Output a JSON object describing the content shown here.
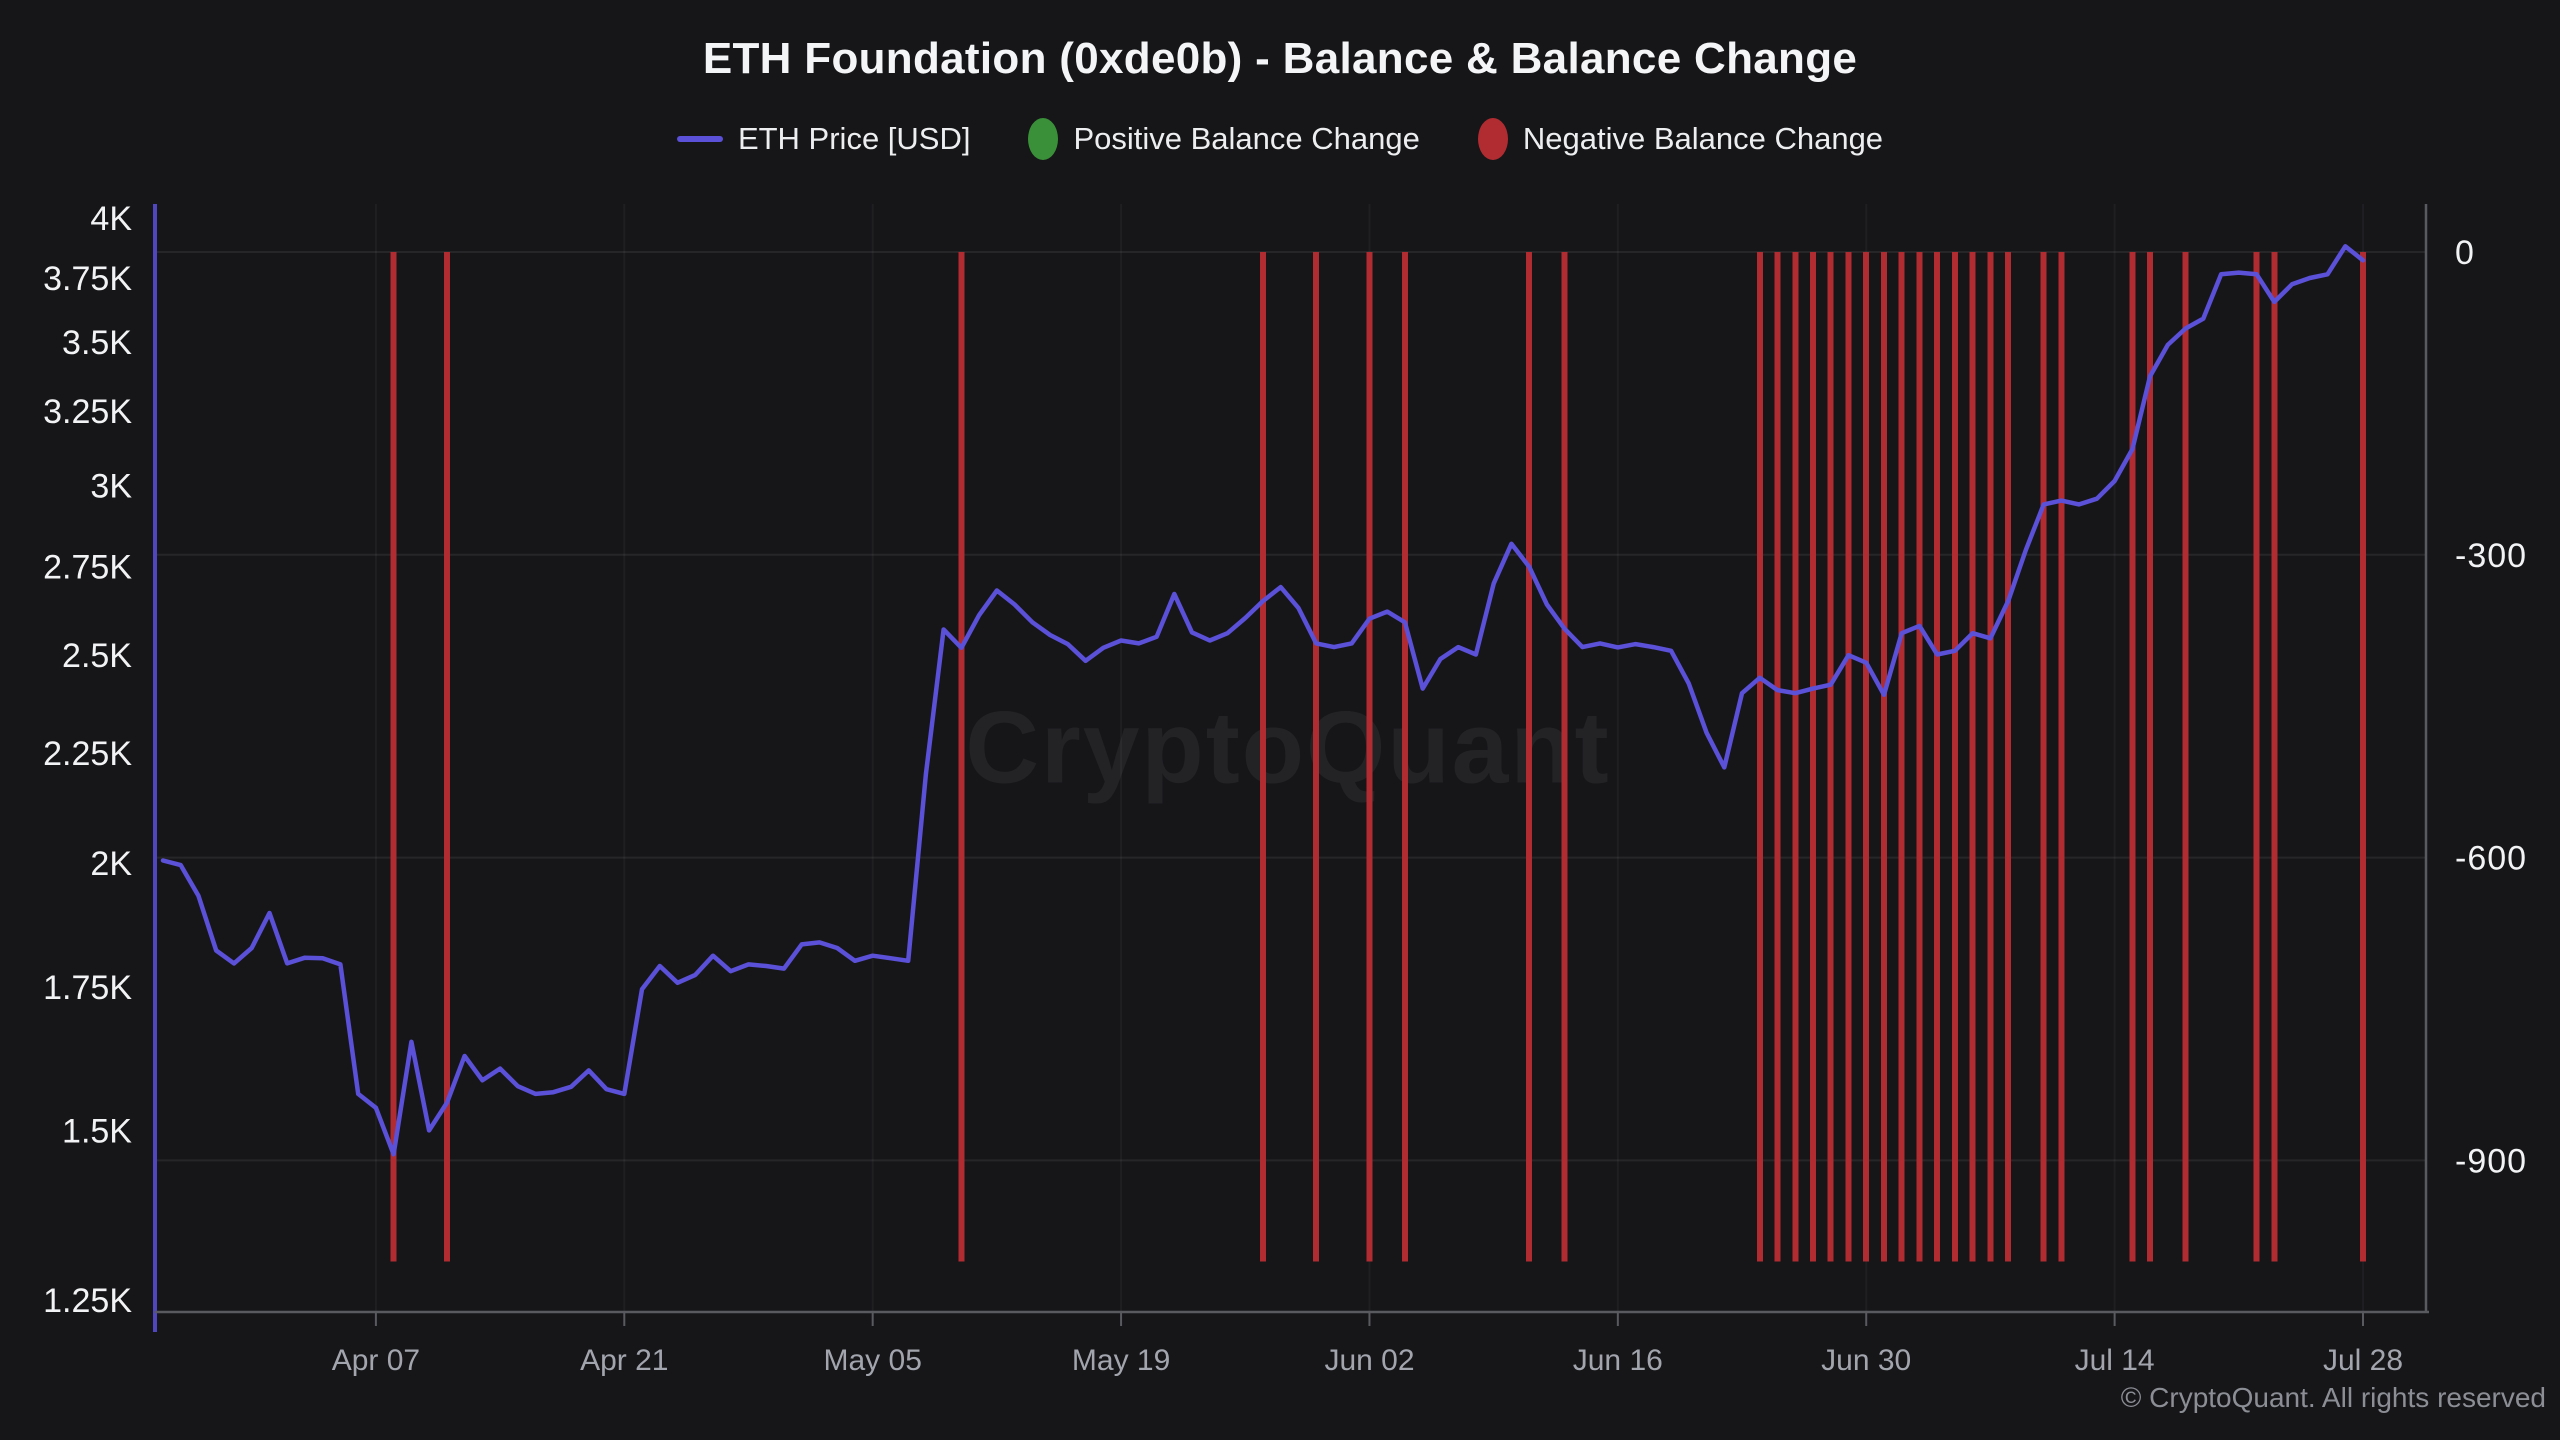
{
  "title": "ETH Foundation (0xde0b) - Balance & Balance Change",
  "watermark": "CryptoQuant",
  "copyright": "© CryptoQuant. All rights reserved",
  "colors": {
    "background": "#161619",
    "title_text": "#f4f5f7",
    "legend_text": "#eceef0",
    "axis_label_text": "#f2f3f5",
    "x_label_text": "#a2a5ad",
    "axis_line": "#595a60",
    "grid_line": "rgba(255,255,255,0.07)",
    "vertical_grid_line": "rgba(255,255,255,0.04)",
    "price_line": "#5b50d8",
    "price_axis_line": "#4f46c0",
    "positive_change": "#3a9038",
    "negative_change": "#b02c31",
    "copyright_text": "#8c8e95"
  },
  "legend": {
    "items": [
      {
        "label": "ETH Price [USD]",
        "marker": "line",
        "color": "#5b50d8"
      },
      {
        "label": "Positive Balance Change",
        "marker": "circle",
        "color": "#3a9038"
      },
      {
        "label": "Negative Balance Change",
        "marker": "circle",
        "color": "#b02c31"
      }
    ]
  },
  "chart_data": {
    "type": "line+bar",
    "title": "ETH Foundation (0xde0b) - Balance & Balance Change",
    "x_axis": {
      "cadence": "daily",
      "start_date": "Mar 26",
      "end_date": "Jul 28",
      "ticks": [
        {
          "label": "Apr 07",
          "day": 12
        },
        {
          "label": "Apr 21",
          "day": 26
        },
        {
          "label": "May 05",
          "day": 40
        },
        {
          "label": "May 19",
          "day": 54
        },
        {
          "label": "Jun 02",
          "day": 68
        },
        {
          "label": "Jun 16",
          "day": 82
        },
        {
          "label": "Jun 30",
          "day": 96
        },
        {
          "label": "Jul 14",
          "day": 110
        },
        {
          "label": "Jul 28",
          "day": 124
        }
      ]
    },
    "y_left": {
      "scale": "log",
      "range": [
        1250,
        4000
      ],
      "ticks": [
        {
          "label": "4K",
          "value": 4000
        },
        {
          "label": "3.75K",
          "value": 3750
        },
        {
          "label": "3.5K",
          "value": 3500
        },
        {
          "label": "3.25K",
          "value": 3250
        },
        {
          "label": "3K",
          "value": 3000
        },
        {
          "label": "2.75K",
          "value": 2750
        },
        {
          "label": "2.5K",
          "value": 2500
        },
        {
          "label": "2.25K",
          "value": 2250
        },
        {
          "label": "2K",
          "value": 2000
        },
        {
          "label": "1.75K",
          "value": 1750
        },
        {
          "label": "1.5K",
          "value": 1500
        },
        {
          "label": "1.25K",
          "value": 1250
        }
      ]
    },
    "y_right": {
      "scale": "linear",
      "ticks": [
        {
          "label": "0",
          "value": 0
        },
        {
          "label": "-300",
          "value": -300
        },
        {
          "label": "-600",
          "value": -600
        },
        {
          "label": "-900",
          "value": -900
        }
      ]
    },
    "series": [
      {
        "name": "ETH Price [USD]",
        "type": "line",
        "axis": "left",
        "start_date": "Mar 26",
        "cadence": "daily",
        "values": [
          2005,
          1995,
          1930,
          1820,
          1795,
          1825,
          1895,
          1795,
          1806,
          1805,
          1793,
          1560,
          1537,
          1462,
          1650,
          1500,
          1545,
          1625,
          1583,
          1603,
          1573,
          1560,
          1563,
          1572,
          1600,
          1568,
          1560,
          1746,
          1790,
          1758,
          1773,
          1810,
          1780,
          1793,
          1790,
          1785,
          1832,
          1836,
          1825,
          1800,
          1810,
          1805,
          1800,
          2200,
          2570,
          2520,
          2610,
          2680,
          2640,
          2590,
          2555,
          2530,
          2485,
          2520,
          2540,
          2532,
          2550,
          2670,
          2562,
          2540,
          2560,
          2602,
          2650,
          2690,
          2630,
          2532,
          2522,
          2532,
          2600,
          2620,
          2590,
          2412,
          2490,
          2522,
          2502,
          2700,
          2818,
          2750,
          2640,
          2572,
          2522,
          2532,
          2521,
          2530,
          2522,
          2512,
          2425,
          2300,
          2216,
          2400,
          2440,
          2408,
          2400,
          2412,
          2422,
          2500,
          2480,
          2396,
          2560,
          2580,
          2502,
          2512,
          2560,
          2546,
          2650,
          2800,
          2940,
          2952,
          2940,
          2958,
          3015,
          3120,
          3375,
          3490,
          3552,
          3590,
          3765,
          3772,
          3765,
          3655,
          3725,
          3750,
          3765,
          3880,
          3822
        ]
      },
      {
        "name": "Negative Balance Change",
        "type": "bar",
        "axis": "right",
        "value_each": -1000,
        "dates": [
          "Apr 08",
          "Apr 11",
          "May 10",
          "May 27",
          "May 30",
          "Jun 02",
          "Jun 04",
          "Jun 11",
          "Jun 13",
          "Jun 24",
          "Jun 25",
          "Jun 26",
          "Jun 27",
          "Jun 28",
          "Jun 29",
          "Jun 30",
          "Jul 01",
          "Jul 02",
          "Jul 03",
          "Jul 04",
          "Jul 05",
          "Jul 06",
          "Jul 07",
          "Jul 08",
          "Jul 10",
          "Jul 11",
          "Jul 15",
          "Jul 16",
          "Jul 18",
          "Jul 22",
          "Jul 23",
          "Jul 28"
        ],
        "days": [
          13,
          16,
          45,
          62,
          65,
          68,
          70,
          77,
          79,
          90,
          91,
          92,
          93,
          94,
          95,
          96,
          97,
          98,
          99,
          100,
          101,
          102,
          103,
          104,
          106,
          107,
          111,
          112,
          114,
          118,
          119,
          124
        ]
      },
      {
        "name": "Positive Balance Change",
        "type": "bar",
        "axis": "right",
        "dates": [],
        "days": []
      }
    ]
  }
}
